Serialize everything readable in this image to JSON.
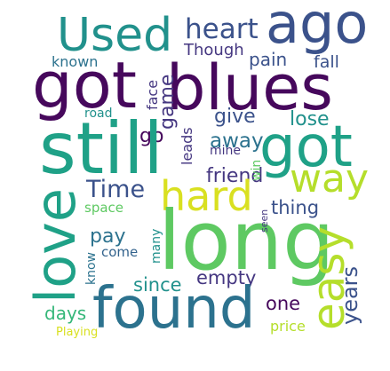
{
  "palette": {
    "dark_purple": "#46085c",
    "purple": "#453781",
    "slate_blue": "#3b528b",
    "steel_blue": "#33638d",
    "teal_blue": "#2c728e",
    "teal": "#21918c",
    "teal_green": "#1fa187",
    "green": "#35b779",
    "light_green": "#5ec962",
    "lime": "#84d44b",
    "yellow_green": "#b5de2b",
    "yellow": "#d9e021"
  },
  "words": {
    "long": "long",
    "found": "found",
    "got_top": "got",
    "blues": "blues",
    "still": "still",
    "got_mid": "got",
    "love": "love",
    "used": "Used",
    "ago": "ago",
    "hard": "hard",
    "way": "way",
    "easy": "easy",
    "heart": "heart",
    "time": "Time",
    "friend": "friend",
    "though": "Though",
    "pain": "pain",
    "fall": "fall",
    "known": "known",
    "game": "game",
    "face": "face",
    "give": "give",
    "lose": "lose",
    "go": "go",
    "away": "away",
    "road": "road",
    "leads": "leads",
    "mine": "mine",
    "win": "win",
    "thing": "thing",
    "space": "space",
    "seen": "seen",
    "pay": "pay",
    "many": "many",
    "come": "come",
    "know": "know",
    "since": "since",
    "empty": "empty",
    "years": "years",
    "one": "one",
    "days": "days",
    "price": "price",
    "playing": "Playing"
  }
}
